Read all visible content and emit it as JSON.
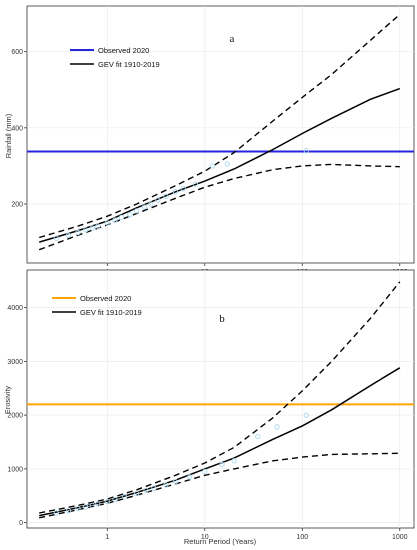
{
  "figure": {
    "xlabel": "Return Period (Years)"
  },
  "chart_data": [
    {
      "type": "line",
      "panel_label": "a",
      "xlabel": "",
      "ylabel": "Rainfall (mm)",
      "x_scale": "log",
      "xlim": [
        0.15,
        1400
      ],
      "ylim": [
        45,
        720
      ],
      "x_ticks": [
        1,
        10,
        100,
        1000
      ],
      "x_tick_labels": [
        "1",
        "10",
        "100",
        "1000"
      ],
      "y_ticks": [
        200,
        400,
        600
      ],
      "y_tick_labels": [
        "200",
        "400",
        "600"
      ],
      "grid": true,
      "legend_position": "top-left",
      "colors": {
        "observed": "#2525dd",
        "fit": "#000000",
        "points": "#a8d8f0",
        "grid": "#ebebeb",
        "frame": "#333333"
      },
      "series": [
        {
          "name": "Observed 2020",
          "style": "hline",
          "y": 338
        },
        {
          "name": "GEV fit 1910-2019",
          "style": "solid",
          "x": [
            0.2,
            0.5,
            1,
            2,
            5,
            10,
            20,
            50,
            100,
            200,
            500,
            1000
          ],
          "y": [
            100,
            130,
            155,
            190,
            232,
            260,
            292,
            343,
            385,
            425,
            475,
            503
          ]
        },
        {
          "style": "dashed",
          "x": [
            0.2,
            0.5,
            1,
            2,
            5,
            10,
            20,
            50,
            100,
            200,
            500,
            1000
          ],
          "y": [
            112,
            142,
            168,
            200,
            248,
            286,
            335,
            418,
            480,
            540,
            630,
            698
          ]
        },
        {
          "style": "dashed",
          "x": [
            0.2,
            0.5,
            1,
            2,
            5,
            10,
            20,
            50,
            100,
            200,
            500,
            1000
          ],
          "y": [
            80,
            118,
            145,
            175,
            215,
            244,
            267,
            290,
            300,
            304,
            300,
            298
          ]
        },
        {
          "style": "points",
          "x": [
            0.3,
            0.4,
            0.5,
            0.6,
            0.7,
            0.8,
            1.0,
            1.2,
            1.4,
            1.7,
            2.0,
            2.4,
            2.8,
            3.3,
            4.0,
            5.0,
            6.0,
            8.0,
            12,
            17,
            110
          ],
          "y": [
            110,
            118,
            125,
            132,
            137,
            142,
            150,
            158,
            165,
            172,
            182,
            192,
            200,
            210,
            220,
            232,
            240,
            252,
            300,
            305,
            340
          ]
        }
      ]
    },
    {
      "type": "line",
      "panel_label": "b",
      "xlabel": "Return Period (Years)",
      "ylabel": "Erosivity",
      "x_scale": "log",
      "xlim": [
        0.15,
        1400
      ],
      "ylim": [
        -100,
        4700
      ],
      "x_ticks": [
        1,
        10,
        100,
        1000
      ],
      "x_tick_labels": [
        "1",
        "10",
        "100",
        "1000"
      ],
      "y_ticks": [
        0,
        1000,
        2000,
        3000,
        4000
      ],
      "y_tick_labels": [
        "0",
        "1000",
        "2000",
        "3000",
        "4000"
      ],
      "grid": true,
      "legend_position": "top-left",
      "colors": {
        "observed": "#ffa500",
        "fit": "#000000",
        "points": "#a8d8f0",
        "grid": "#ebebeb",
        "frame": "#333333"
      },
      "series": [
        {
          "name": "Observed 2020",
          "style": "hline",
          "y": 2200
        },
        {
          "name": "GEV fit 1910-2019",
          "style": "solid",
          "x": [
            0.2,
            0.5,
            1,
            2,
            5,
            10,
            20,
            50,
            100,
            200,
            500,
            1000
          ],
          "y": [
            130,
            280,
            400,
            560,
            790,
            1000,
            1200,
            1550,
            1800,
            2100,
            2550,
            2880
          ]
        },
        {
          "style": "dashed",
          "x": [
            0.2,
            0.5,
            1,
            2,
            5,
            10,
            20,
            50,
            100,
            200,
            500,
            1000
          ],
          "y": [
            180,
            320,
            440,
            610,
            880,
            1110,
            1400,
            1950,
            2450,
            3000,
            3800,
            4480
          ]
        },
        {
          "style": "dashed",
          "x": [
            0.2,
            0.5,
            1,
            2,
            5,
            10,
            20,
            50,
            100,
            200,
            500,
            1000
          ],
          "y": [
            90,
            240,
            360,
            510,
            720,
            880,
            1000,
            1150,
            1220,
            1270,
            1280,
            1290
          ]
        },
        {
          "style": "points",
          "x": [
            0.3,
            0.4,
            0.5,
            0.6,
            0.7,
            0.8,
            1.0,
            1.2,
            1.5,
            2.0,
            2.5,
            3.0,
            4.0,
            5.0,
            7.0,
            10,
            15,
            20,
            35,
            55,
            110
          ],
          "y": [
            180,
            220,
            260,
            290,
            320,
            350,
            390,
            430,
            480,
            540,
            600,
            640,
            700,
            760,
            850,
            950,
            1080,
            1150,
            1600,
            1780,
            2000
          ]
        }
      ]
    }
  ]
}
